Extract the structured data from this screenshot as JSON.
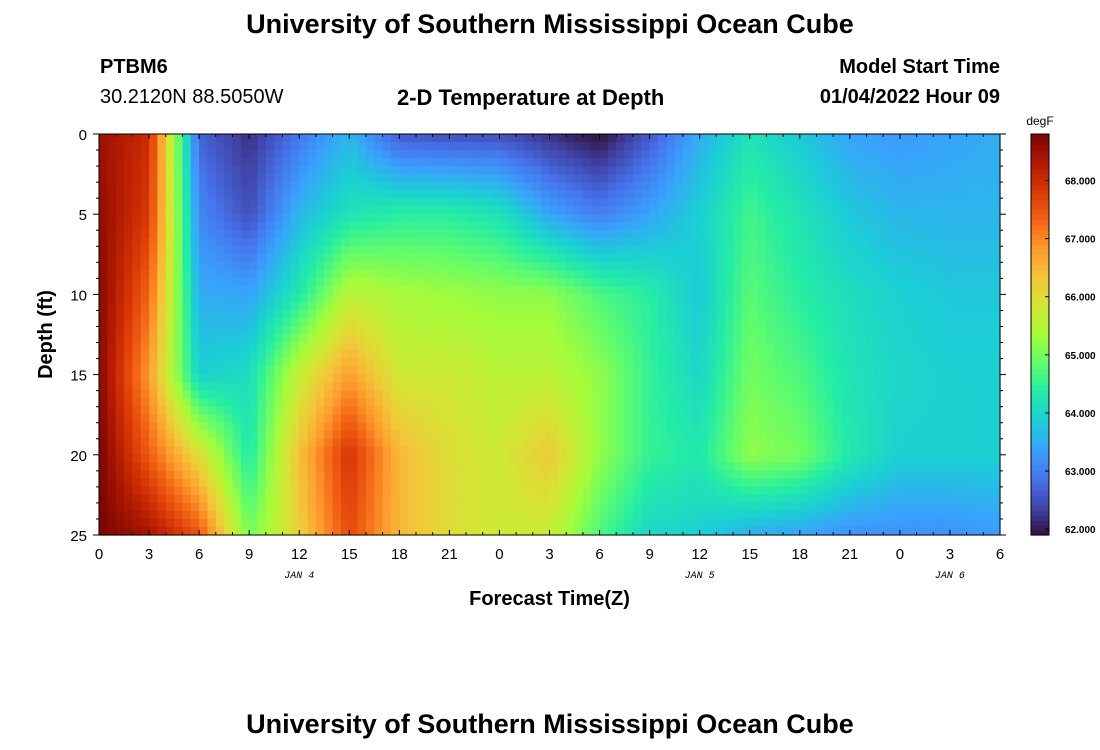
{
  "page": {
    "title": "University of Southern Mississippi Ocean Cube",
    "station_id": "PTBM6",
    "station_coords": "30.2120N  88.5050W",
    "plot_title": "2-D Temperature at Depth",
    "model_start_label": "Model Start Time",
    "model_start_value": "01/04/2022 Hour 09",
    "footer_title": "University of Southern Mississippi Ocean Cube"
  },
  "chart_data": {
    "type": "heatmap",
    "title": "2-D Temperature at Depth",
    "xlabel": "Forecast Time(Z)",
    "ylabel": "Depth (ft)",
    "colorbar_label": "degF",
    "x_range_hours": [
      0,
      54
    ],
    "y_range": [
      0,
      25
    ],
    "y_inverted": true,
    "x_ticks": [
      "0",
      "3",
      "6",
      "9",
      "12",
      "15",
      "18",
      "21",
      "0",
      "3",
      "6",
      "9",
      "12",
      "15",
      "18",
      "21",
      "0",
      "3",
      "6"
    ],
    "y_ticks": [
      "0",
      "5",
      "10",
      "15",
      "20",
      "25"
    ],
    "date_labels": [
      {
        "text": "JAN 4",
        "x_hour": 12
      },
      {
        "text": "JAN 5",
        "x_hour": 36
      },
      {
        "text": "JAN 6",
        "x_hour": 51
      }
    ],
    "colorbar_min": 61.9,
    "colorbar_max": 68.8,
    "colorbar_ticks": [
      "62.000",
      "63.000",
      "64.000",
      "65.000",
      "66.000",
      "67.000",
      "68.000"
    ],
    "colormap": [
      "#30123b",
      "#4145ab",
      "#4675ed",
      "#39a2fc",
      "#1bcfd4",
      "#24eca6",
      "#61fc6c",
      "#a4fc3b",
      "#d1e834",
      "#f3c63a",
      "#fe9b2d",
      "#f36315",
      "#d93806",
      "#b11901",
      "#7a0403"
    ],
    "grid": false,
    "x_hours": [
      0,
      3,
      6,
      9,
      12,
      15,
      18,
      21,
      24,
      27,
      30,
      33,
      36,
      39,
      42,
      45,
      48,
      51,
      54
    ],
    "depths": [
      0,
      5,
      10,
      15,
      20,
      25
    ],
    "temperature_degF": [
      [
        68.5,
        68.0,
        62.7,
        62.2,
        62.9,
        63.6,
        62.6,
        62.5,
        62.5,
        62.2,
        61.9,
        62.6,
        63.5,
        64.2,
        63.8,
        63.4,
        63.3,
        63.4,
        63.5
      ],
      [
        68.6,
        67.8,
        63.1,
        62.5,
        63.6,
        64.2,
        64.4,
        64.4,
        64.2,
        63.4,
        63.0,
        63.4,
        63.9,
        64.6,
        64.2,
        63.8,
        63.6,
        63.6,
        63.6
      ],
      [
        68.7,
        67.3,
        63.5,
        63.4,
        64.3,
        65.6,
        65.4,
        65.3,
        65.2,
        65.2,
        64.7,
        64.4,
        63.8,
        64.8,
        64.4,
        64.1,
        63.9,
        63.8,
        63.8
      ],
      [
        68.7,
        66.8,
        63.9,
        64.1,
        65.7,
        66.8,
        65.8,
        65.8,
        65.6,
        65.6,
        65.2,
        64.5,
        64.0,
        65.0,
        64.7,
        64.2,
        64.0,
        63.9,
        63.9
      ],
      [
        68.8,
        67.4,
        66.0,
        64.3,
        66.4,
        67.9,
        66.5,
        66.0,
        65.8,
        66.3,
        65.2,
        64.5,
        64.3,
        65.2,
        65.0,
        64.3,
        63.9,
        63.9,
        63.9
      ],
      [
        68.8,
        68.4,
        67.5,
        65.0,
        66.2,
        67.6,
        66.5,
        66.0,
        65.8,
        65.7,
        64.7,
        64.0,
        63.9,
        63.5,
        63.4,
        63.2,
        63.2,
        63.2,
        63.3
      ]
    ]
  }
}
